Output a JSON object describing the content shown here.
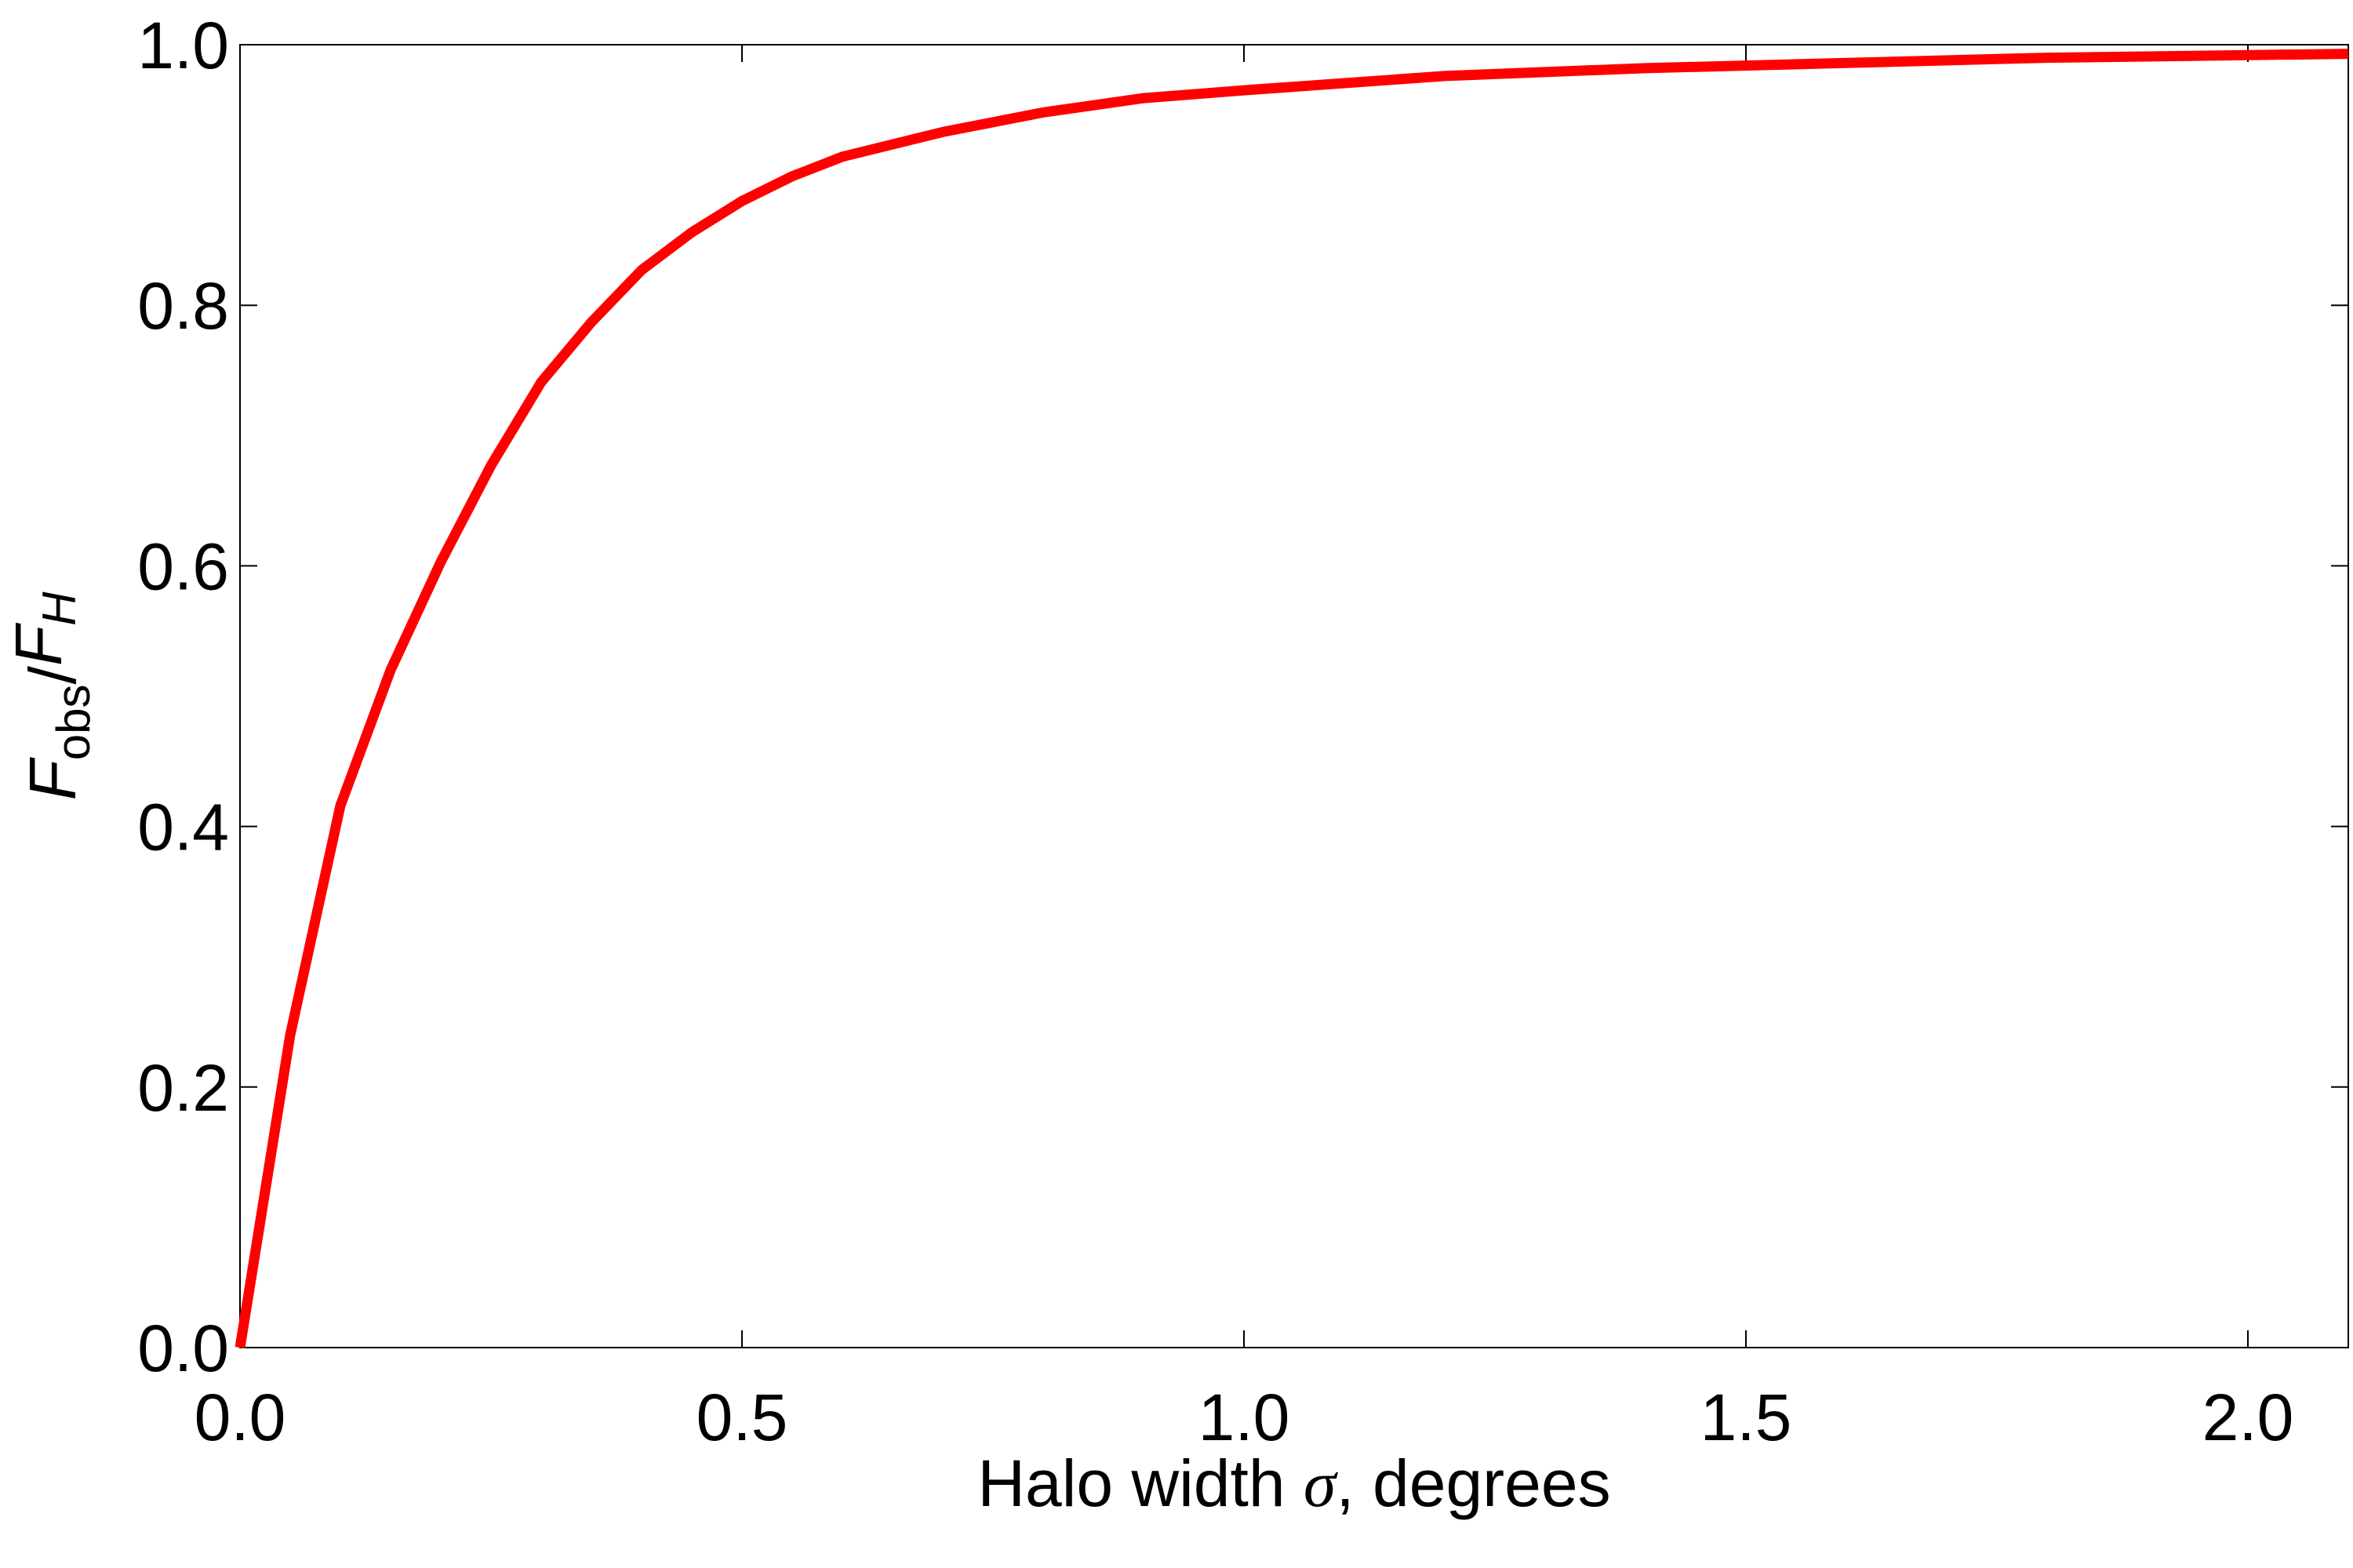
{
  "chart_data": {
    "type": "line",
    "xlabel_parts": [
      "Halo width ",
      "σ",
      ", degrees"
    ],
    "ylabel_parts": [
      "F",
      "obs",
      "/",
      "F",
      "H"
    ],
    "x": [
      0,
      0.05,
      0.1,
      0.15,
      0.2,
      0.25,
      0.3,
      0.35,
      0.4,
      0.45,
      0.5,
      0.55,
      0.6,
      0.7,
      0.8,
      0.9,
      1.0,
      1.2,
      1.4,
      1.6,
      1.8,
      2.0,
      2.1
    ],
    "series": [
      {
        "color": "#ff0000",
        "values": [
          0.0,
          0.24,
          0.416,
          0.52,
          0.603,
          0.677,
          0.741,
          0.787,
          0.827,
          0.856,
          0.88,
          0.899,
          0.914,
          0.933,
          0.948,
          0.959,
          0.965,
          0.976,
          0.982,
          0.986,
          0.99,
          0.992,
          0.993
        ]
      }
    ],
    "xlim": [
      0,
      2.1
    ],
    "ylim": [
      0,
      1
    ],
    "xticks": [
      {
        "value": 0,
        "label": "0.0"
      },
      {
        "value": 0.5,
        "label": "0.5"
      },
      {
        "value": 1,
        "label": "1.0"
      },
      {
        "value": 1.5,
        "label": "1.5"
      },
      {
        "value": 2,
        "label": "2.0"
      }
    ],
    "yticks": [
      {
        "value": 0,
        "label": "0.0"
      },
      {
        "value": 0.2,
        "label": "0.2"
      },
      {
        "value": 0.4,
        "label": "0.4"
      },
      {
        "value": 0.6,
        "label": "0.6"
      },
      {
        "value": 0.8,
        "label": "0.8"
      },
      {
        "value": 1,
        "label": "1.0"
      }
    ],
    "grid": false
  }
}
